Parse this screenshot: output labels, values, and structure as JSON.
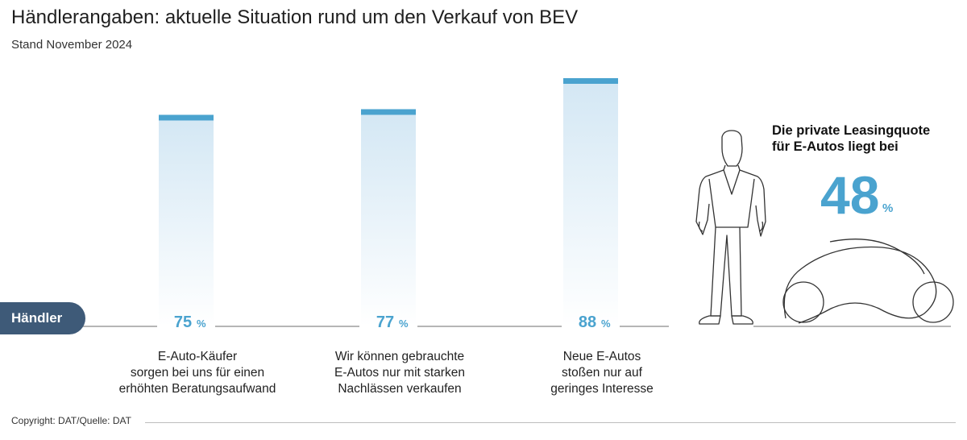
{
  "title": "Händlerangaben: aktuelle Situation rund um den Verkauf von BEV",
  "subtitle": "Stand November 2024",
  "baseline_label": "Händler",
  "side_panel": {
    "text": "Die private Leasingquote\nfür E-Autos liegt bei",
    "value": "48",
    "unit": "%"
  },
  "footer": "Copyright: DAT/Quelle: DAT",
  "colors": {
    "accent": "#4aa3cf",
    "tag": "#3e5a78",
    "bar_top": "#4aa3cf"
  },
  "chart_data": {
    "type": "bar",
    "title": "Händlerangaben: aktuelle Situation rund um den Verkauf von BEV",
    "subtitle": "Stand November 2024",
    "categories": [
      "E-Auto-Käufer\nsorgen bei uns für einen\nerhöhten Beratungsaufwand",
      "Wir können gebrauchte\nE-Autos nur mit starken\nNachlässen verkaufen",
      "Neue E-Autos\nstoßen nur auf\ngeringes Interesse"
    ],
    "values": [
      75,
      77,
      88
    ],
    "value_labels": [
      "75",
      "77",
      "88"
    ],
    "unit": "%",
    "ylim": [
      0,
      100
    ],
    "grid": false
  }
}
